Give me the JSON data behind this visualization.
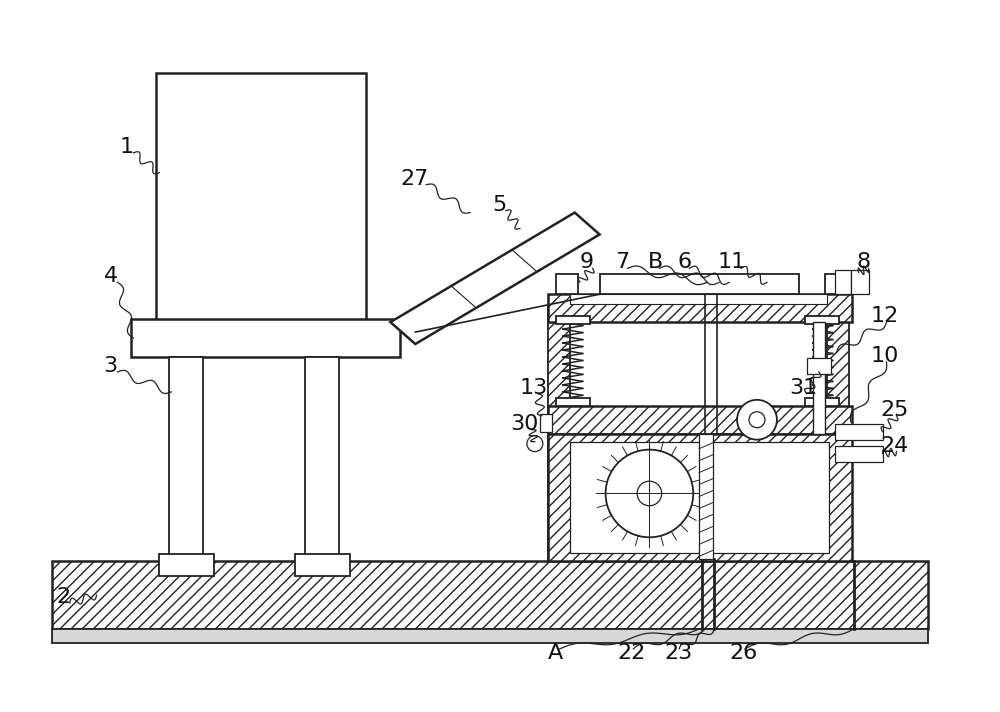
{
  "bg_color": "#ffffff",
  "line_color": "#000000",
  "fig_width": 10.0,
  "fig_height": 7.12,
  "dpi": 100
}
